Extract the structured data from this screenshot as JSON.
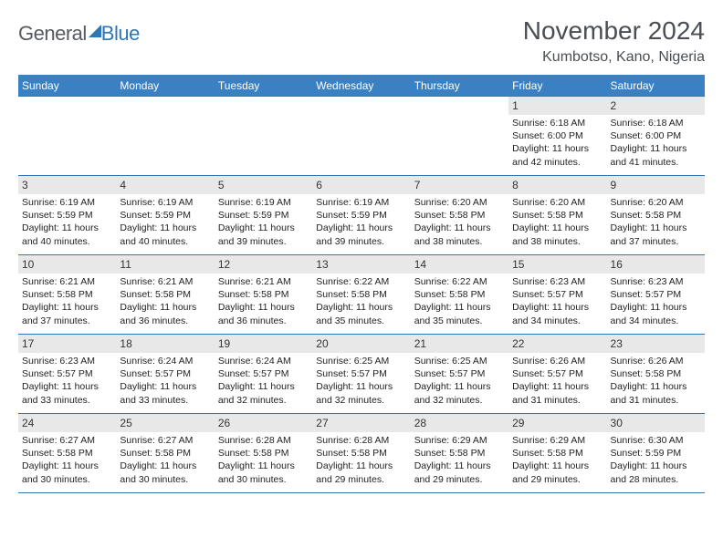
{
  "brand": {
    "part1": "General",
    "part2": "Blue"
  },
  "title": "November 2024",
  "location": "Kumbotso, Kano, Nigeria",
  "colors": {
    "header_bg": "#3a81c4",
    "header_text": "#ffffff",
    "rule": "#2f76b6",
    "strip": "#e8e8e8",
    "text": "#222222",
    "title_text": "#4a4e52"
  },
  "day_names": [
    "Sunday",
    "Monday",
    "Tuesday",
    "Wednesday",
    "Thursday",
    "Friday",
    "Saturday"
  ],
  "weeks": [
    [
      {
        "day": null
      },
      {
        "day": null
      },
      {
        "day": null
      },
      {
        "day": null
      },
      {
        "day": null
      },
      {
        "day": 1,
        "sunrise": "Sunrise: 6:18 AM",
        "sunset": "Sunset: 6:00 PM",
        "daylight1": "Daylight: 11 hours",
        "daylight2": "and 42 minutes."
      },
      {
        "day": 2,
        "sunrise": "Sunrise: 6:18 AM",
        "sunset": "Sunset: 6:00 PM",
        "daylight1": "Daylight: 11 hours",
        "daylight2": "and 41 minutes."
      }
    ],
    [
      {
        "day": 3,
        "sunrise": "Sunrise: 6:19 AM",
        "sunset": "Sunset: 5:59 PM",
        "daylight1": "Daylight: 11 hours",
        "daylight2": "and 40 minutes."
      },
      {
        "day": 4,
        "sunrise": "Sunrise: 6:19 AM",
        "sunset": "Sunset: 5:59 PM",
        "daylight1": "Daylight: 11 hours",
        "daylight2": "and 40 minutes."
      },
      {
        "day": 5,
        "sunrise": "Sunrise: 6:19 AM",
        "sunset": "Sunset: 5:59 PM",
        "daylight1": "Daylight: 11 hours",
        "daylight2": "and 39 minutes."
      },
      {
        "day": 6,
        "sunrise": "Sunrise: 6:19 AM",
        "sunset": "Sunset: 5:59 PM",
        "daylight1": "Daylight: 11 hours",
        "daylight2": "and 39 minutes."
      },
      {
        "day": 7,
        "sunrise": "Sunrise: 6:20 AM",
        "sunset": "Sunset: 5:58 PM",
        "daylight1": "Daylight: 11 hours",
        "daylight2": "and 38 minutes."
      },
      {
        "day": 8,
        "sunrise": "Sunrise: 6:20 AM",
        "sunset": "Sunset: 5:58 PM",
        "daylight1": "Daylight: 11 hours",
        "daylight2": "and 38 minutes."
      },
      {
        "day": 9,
        "sunrise": "Sunrise: 6:20 AM",
        "sunset": "Sunset: 5:58 PM",
        "daylight1": "Daylight: 11 hours",
        "daylight2": "and 37 minutes."
      }
    ],
    [
      {
        "day": 10,
        "sunrise": "Sunrise: 6:21 AM",
        "sunset": "Sunset: 5:58 PM",
        "daylight1": "Daylight: 11 hours",
        "daylight2": "and 37 minutes."
      },
      {
        "day": 11,
        "sunrise": "Sunrise: 6:21 AM",
        "sunset": "Sunset: 5:58 PM",
        "daylight1": "Daylight: 11 hours",
        "daylight2": "and 36 minutes."
      },
      {
        "day": 12,
        "sunrise": "Sunrise: 6:21 AM",
        "sunset": "Sunset: 5:58 PM",
        "daylight1": "Daylight: 11 hours",
        "daylight2": "and 36 minutes."
      },
      {
        "day": 13,
        "sunrise": "Sunrise: 6:22 AM",
        "sunset": "Sunset: 5:58 PM",
        "daylight1": "Daylight: 11 hours",
        "daylight2": "and 35 minutes."
      },
      {
        "day": 14,
        "sunrise": "Sunrise: 6:22 AM",
        "sunset": "Sunset: 5:58 PM",
        "daylight1": "Daylight: 11 hours",
        "daylight2": "and 35 minutes."
      },
      {
        "day": 15,
        "sunrise": "Sunrise: 6:23 AM",
        "sunset": "Sunset: 5:57 PM",
        "daylight1": "Daylight: 11 hours",
        "daylight2": "and 34 minutes."
      },
      {
        "day": 16,
        "sunrise": "Sunrise: 6:23 AM",
        "sunset": "Sunset: 5:57 PM",
        "daylight1": "Daylight: 11 hours",
        "daylight2": "and 34 minutes."
      }
    ],
    [
      {
        "day": 17,
        "sunrise": "Sunrise: 6:23 AM",
        "sunset": "Sunset: 5:57 PM",
        "daylight1": "Daylight: 11 hours",
        "daylight2": "and 33 minutes."
      },
      {
        "day": 18,
        "sunrise": "Sunrise: 6:24 AM",
        "sunset": "Sunset: 5:57 PM",
        "daylight1": "Daylight: 11 hours",
        "daylight2": "and 33 minutes."
      },
      {
        "day": 19,
        "sunrise": "Sunrise: 6:24 AM",
        "sunset": "Sunset: 5:57 PM",
        "daylight1": "Daylight: 11 hours",
        "daylight2": "and 32 minutes."
      },
      {
        "day": 20,
        "sunrise": "Sunrise: 6:25 AM",
        "sunset": "Sunset: 5:57 PM",
        "daylight1": "Daylight: 11 hours",
        "daylight2": "and 32 minutes."
      },
      {
        "day": 21,
        "sunrise": "Sunrise: 6:25 AM",
        "sunset": "Sunset: 5:57 PM",
        "daylight1": "Daylight: 11 hours",
        "daylight2": "and 32 minutes."
      },
      {
        "day": 22,
        "sunrise": "Sunrise: 6:26 AM",
        "sunset": "Sunset: 5:57 PM",
        "daylight1": "Daylight: 11 hours",
        "daylight2": "and 31 minutes."
      },
      {
        "day": 23,
        "sunrise": "Sunrise: 6:26 AM",
        "sunset": "Sunset: 5:58 PM",
        "daylight1": "Daylight: 11 hours",
        "daylight2": "and 31 minutes."
      }
    ],
    [
      {
        "day": 24,
        "sunrise": "Sunrise: 6:27 AM",
        "sunset": "Sunset: 5:58 PM",
        "daylight1": "Daylight: 11 hours",
        "daylight2": "and 30 minutes."
      },
      {
        "day": 25,
        "sunrise": "Sunrise: 6:27 AM",
        "sunset": "Sunset: 5:58 PM",
        "daylight1": "Daylight: 11 hours",
        "daylight2": "and 30 minutes."
      },
      {
        "day": 26,
        "sunrise": "Sunrise: 6:28 AM",
        "sunset": "Sunset: 5:58 PM",
        "daylight1": "Daylight: 11 hours",
        "daylight2": "and 30 minutes."
      },
      {
        "day": 27,
        "sunrise": "Sunrise: 6:28 AM",
        "sunset": "Sunset: 5:58 PM",
        "daylight1": "Daylight: 11 hours",
        "daylight2": "and 29 minutes."
      },
      {
        "day": 28,
        "sunrise": "Sunrise: 6:29 AM",
        "sunset": "Sunset: 5:58 PM",
        "daylight1": "Daylight: 11 hours",
        "daylight2": "and 29 minutes."
      },
      {
        "day": 29,
        "sunrise": "Sunrise: 6:29 AM",
        "sunset": "Sunset: 5:58 PM",
        "daylight1": "Daylight: 11 hours",
        "daylight2": "and 29 minutes."
      },
      {
        "day": 30,
        "sunrise": "Sunrise: 6:30 AM",
        "sunset": "Sunset: 5:59 PM",
        "daylight1": "Daylight: 11 hours",
        "daylight2": "and 28 minutes."
      }
    ]
  ]
}
